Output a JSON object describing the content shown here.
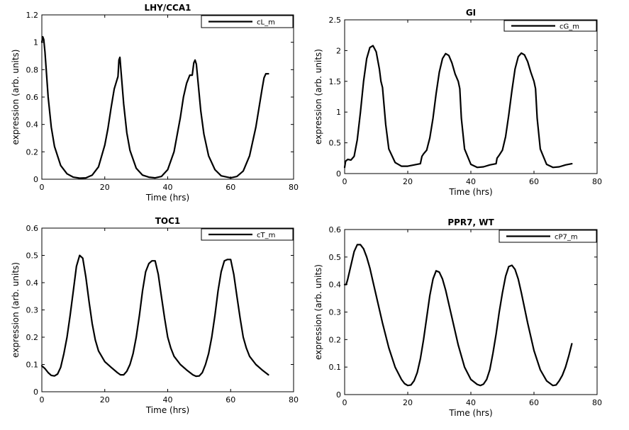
{
  "chart_data": [
    {
      "type": "line",
      "title": "LHY/CCA1",
      "xlabel": "Time (hrs)",
      "ylabel": "expression (arb. units)",
      "xlim": [
        0,
        80
      ],
      "ylim": [
        0,
        1.2
      ],
      "xticks": [
        "0",
        "20",
        "40",
        "60",
        "80"
      ],
      "yticks": [
        "0",
        "0.2",
        "0.4",
        "0.6",
        "0.8",
        "1",
        "1.2"
      ],
      "legend": "top-right",
      "series": [
        {
          "name": "cL_m",
          "x": [
            0,
            0.3,
            0.6,
            1,
            2,
            3,
            4,
            6,
            8,
            10,
            12,
            14,
            16,
            18,
            20,
            21,
            22,
            23,
            23.8,
            24.2,
            24.5,
            24.8,
            25.2,
            26,
            27,
            28,
            30,
            32,
            34,
            36,
            38,
            40,
            42,
            44,
            45,
            46,
            47,
            47.8,
            48.3,
            48.7,
            49.1,
            49.6,
            50.5,
            51.5,
            53,
            55,
            57,
            60,
            62,
            64,
            66,
            68,
            69,
            70,
            70.6,
            71.2,
            72
          ],
          "y": [
            1.0,
            1.04,
            1.02,
            0.93,
            0.6,
            0.38,
            0.24,
            0.1,
            0.04,
            0.015,
            0.008,
            0.01,
            0.03,
            0.09,
            0.25,
            0.37,
            0.52,
            0.66,
            0.72,
            0.75,
            0.87,
            0.89,
            0.78,
            0.55,
            0.34,
            0.21,
            0.08,
            0.03,
            0.015,
            0.01,
            0.02,
            0.07,
            0.2,
            0.45,
            0.6,
            0.7,
            0.76,
            0.76,
            0.85,
            0.87,
            0.84,
            0.72,
            0.5,
            0.33,
            0.17,
            0.07,
            0.025,
            0.01,
            0.02,
            0.06,
            0.17,
            0.38,
            0.52,
            0.66,
            0.74,
            0.77,
            0.77
          ]
        }
      ]
    },
    {
      "type": "line",
      "title": "GI",
      "xlabel": "Time (hrs)",
      "ylabel": "expression (arb. units)",
      "xlim": [
        0,
        80
      ],
      "ylim": [
        0,
        2.5
      ],
      "xticks": [
        "0",
        "20",
        "40",
        "60",
        "80"
      ],
      "yticks": [
        "0",
        "0.5",
        "1",
        "1.5",
        "2",
        "2.5"
      ],
      "legend": "top-right",
      "series": [
        {
          "name": "cG_m",
          "x": [
            0,
            0.3,
            1,
            2,
            3,
            4,
            5,
            6,
            7,
            8,
            9,
            10,
            11,
            11.5,
            12,
            13,
            14,
            16,
            18,
            20,
            22,
            24,
            24.5,
            25,
            26,
            27,
            28,
            29,
            30,
            31,
            32,
            33,
            34,
            35,
            36,
            36.5,
            37,
            38,
            40,
            42,
            44,
            46,
            48,
            48.3,
            49,
            50,
            51,
            52,
            53,
            54,
            55,
            56,
            57,
            58,
            59,
            60,
            60.5,
            61,
            62,
            64,
            66,
            68,
            70,
            72
          ],
          "y": [
            0.1,
            0.2,
            0.23,
            0.22,
            0.28,
            0.55,
            1.0,
            1.5,
            1.87,
            2.05,
            2.08,
            1.98,
            1.7,
            1.5,
            1.4,
            0.8,
            0.4,
            0.18,
            0.12,
            0.12,
            0.14,
            0.16,
            0.28,
            0.32,
            0.38,
            0.58,
            0.9,
            1.3,
            1.65,
            1.87,
            1.95,
            1.92,
            1.8,
            1.62,
            1.5,
            1.38,
            0.9,
            0.4,
            0.15,
            0.1,
            0.11,
            0.14,
            0.16,
            0.25,
            0.3,
            0.38,
            0.6,
            0.95,
            1.35,
            1.7,
            1.9,
            1.96,
            1.93,
            1.82,
            1.65,
            1.5,
            1.38,
            0.9,
            0.4,
            0.15,
            0.1,
            0.11,
            0.14,
            0.16
          ]
        }
      ]
    },
    {
      "type": "line",
      "title": "TOC1",
      "xlabel": "Time (hrs)",
      "ylabel": "expression (arb. units)",
      "xlim": [
        0,
        80
      ],
      "ylim": [
        0,
        0.6
      ],
      "xticks": [
        "0",
        "20",
        "40",
        "60",
        "80"
      ],
      "yticks": [
        "0",
        "0.1",
        "0.2",
        "0.3",
        "0.4",
        "0.5",
        "0.6"
      ],
      "legend": "top-right",
      "series": [
        {
          "name": "cT_m",
          "x": [
            0,
            1,
            2,
            3,
            4,
            5,
            6,
            7,
            8,
            9,
            10,
            11,
            12,
            13,
            14,
            15,
            16,
            17,
            18,
            20,
            22,
            24,
            25,
            26,
            27,
            28,
            29,
            30,
            31,
            32,
            33,
            34,
            35,
            36,
            37,
            38,
            39,
            40,
            41,
            42,
            44,
            46,
            48,
            49,
            50,
            51,
            52,
            53,
            54,
            55,
            56,
            57,
            58,
            59,
            60,
            61,
            62,
            63,
            64,
            65,
            66,
            68,
            70,
            72
          ],
          "y": [
            0.095,
            0.085,
            0.07,
            0.06,
            0.058,
            0.065,
            0.09,
            0.14,
            0.2,
            0.28,
            0.37,
            0.46,
            0.5,
            0.49,
            0.42,
            0.33,
            0.25,
            0.19,
            0.15,
            0.11,
            0.09,
            0.07,
            0.062,
            0.062,
            0.075,
            0.1,
            0.14,
            0.2,
            0.28,
            0.37,
            0.44,
            0.47,
            0.48,
            0.48,
            0.43,
            0.35,
            0.27,
            0.2,
            0.16,
            0.13,
            0.1,
            0.08,
            0.062,
            0.057,
            0.058,
            0.07,
            0.1,
            0.14,
            0.2,
            0.28,
            0.37,
            0.44,
            0.48,
            0.485,
            0.485,
            0.43,
            0.35,
            0.27,
            0.2,
            0.16,
            0.13,
            0.1,
            0.08,
            0.062
          ]
        }
      ]
    },
    {
      "type": "line",
      "title": "PPR7, WT",
      "xlabel": "Time (hrs)",
      "ylabel": "expression (arb. units)",
      "xlim": [
        0,
        80
      ],
      "ylim": [
        0,
        0.6
      ],
      "xticks": [
        "0",
        "20",
        "40",
        "60",
        "80"
      ],
      "yticks": [
        "0",
        "0.1",
        "0.2",
        "0.3",
        "0.4",
        "0.5",
        "0.6"
      ],
      "legend": "top-right",
      "series": [
        {
          "name": "cP7_m",
          "x": [
            0,
            0.5,
            1,
            2,
            3,
            4,
            5,
            6,
            7,
            8,
            9,
            10,
            12,
            14,
            16,
            18,
            19,
            20,
            21,
            22,
            23,
            24,
            25,
            26,
            27,
            28,
            29,
            30,
            31,
            32,
            34,
            36,
            38,
            40,
            42,
            43,
            44,
            45,
            46,
            47,
            48,
            49,
            50,
            51,
            52,
            53,
            54,
            55,
            56,
            58,
            60,
            62,
            64,
            66,
            67,
            68,
            69,
            70,
            71,
            72
          ],
          "y": [
            0.4,
            0.4,
            0.42,
            0.47,
            0.52,
            0.545,
            0.545,
            0.53,
            0.5,
            0.46,
            0.41,
            0.36,
            0.26,
            0.17,
            0.1,
            0.055,
            0.04,
            0.033,
            0.035,
            0.05,
            0.08,
            0.13,
            0.2,
            0.28,
            0.36,
            0.42,
            0.45,
            0.445,
            0.42,
            0.38,
            0.28,
            0.18,
            0.1,
            0.055,
            0.037,
            0.033,
            0.038,
            0.055,
            0.09,
            0.15,
            0.22,
            0.3,
            0.37,
            0.43,
            0.465,
            0.47,
            0.455,
            0.42,
            0.37,
            0.26,
            0.16,
            0.09,
            0.05,
            0.033,
            0.035,
            0.05,
            0.07,
            0.1,
            0.14,
            0.185
          ]
        }
      ]
    }
  ]
}
